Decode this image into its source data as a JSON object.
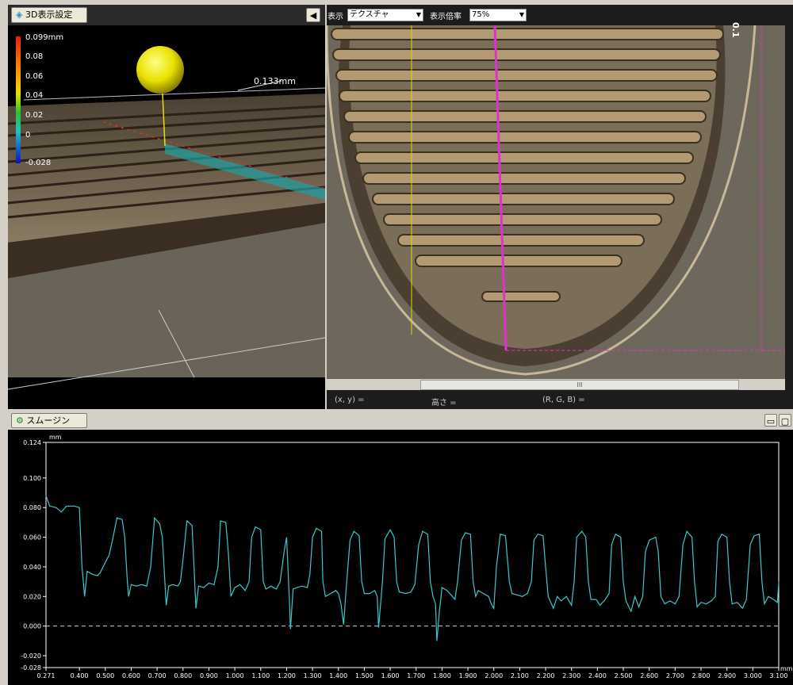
{
  "view3d": {
    "settings_button": "3D表示設定",
    "collapse_arrow": "◀",
    "colorbar_labels": [
      "0.099mm",
      "0.08",
      "0.06",
      "0.04",
      "0.02",
      "0",
      "-0.028"
    ],
    "dimension_label": "0.133mm"
  },
  "image_view": {
    "display_label": "表示",
    "display_value": "テクスチャ",
    "zoom_label": "表示倍率",
    "zoom_value": "75%",
    "scroll_mark": "III",
    "edge_label": "0.1",
    "status": {
      "xy": "(x, y) =",
      "height": "高さ =",
      "rgb": "(R, G, B) ="
    }
  },
  "profile": {
    "window_title": "スムージング..."
  },
  "chart_data": {
    "type": "line",
    "y_unit": "mm",
    "x_unit": "mm",
    "ylim": [
      -0.028,
      0.124
    ],
    "xlim": [
      0.271,
      3.1
    ],
    "y_ticks": [
      "0.124",
      "0.100",
      "0.080",
      "0.060",
      "0.040",
      "0.020",
      "0.000",
      "-0.020",
      "-0.028"
    ],
    "y_tick_values": [
      0.124,
      0.1,
      0.08,
      0.06,
      0.04,
      0.02,
      0.0,
      -0.02,
      -0.028
    ],
    "x_ticks": [
      "0.271",
      "0.400",
      "0.500",
      "0.600",
      "0.700",
      "0.800",
      "0.900",
      "1.000",
      "1.100",
      "1.200",
      "1.300",
      "1.400",
      "1.500",
      "1.600",
      "1.700",
      "1.800",
      "1.900",
      "2.000",
      "2.100",
      "2.200",
      "2.300",
      "2.400",
      "2.500",
      "2.600",
      "2.700",
      "2.800",
      "2.900",
      "3.000",
      "3.100"
    ],
    "x_tick_values": [
      0.271,
      0.4,
      0.5,
      0.6,
      0.7,
      0.8,
      0.9,
      1.0,
      1.1,
      1.2,
      1.3,
      1.4,
      1.5,
      1.6,
      1.7,
      1.8,
      1.9,
      2.0,
      2.1,
      2.2,
      2.3,
      2.4,
      2.5,
      2.6,
      2.7,
      2.8,
      2.9,
      3.0,
      3.1
    ],
    "zero_line": 0.0,
    "series": [
      {
        "color": "#3cc8c8",
        "points": [
          [
            0.271,
            0.088
          ],
          [
            0.285,
            0.081
          ],
          [
            0.31,
            0.08
          ],
          [
            0.33,
            0.077
          ],
          [
            0.35,
            0.081
          ],
          [
            0.38,
            0.081
          ],
          [
            0.4,
            0.08
          ],
          [
            0.41,
            0.04
          ],
          [
            0.42,
            0.02
          ],
          [
            0.43,
            0.037
          ],
          [
            0.45,
            0.035
          ],
          [
            0.47,
            0.034
          ],
          [
            0.48,
            0.036
          ],
          [
            0.5,
            0.043
          ],
          [
            0.515,
            0.048
          ],
          [
            0.53,
            0.06
          ],
          [
            0.545,
            0.073
          ],
          [
            0.565,
            0.072
          ],
          [
            0.575,
            0.06
          ],
          [
            0.585,
            0.03
          ],
          [
            0.59,
            0.02
          ],
          [
            0.6,
            0.028
          ],
          [
            0.62,
            0.027
          ],
          [
            0.64,
            0.028
          ],
          [
            0.66,
            0.027
          ],
          [
            0.675,
            0.04
          ],
          [
            0.69,
            0.073
          ],
          [
            0.71,
            0.069
          ],
          [
            0.72,
            0.06
          ],
          [
            0.73,
            0.03
          ],
          [
            0.735,
            0.014
          ],
          [
            0.745,
            0.027
          ],
          [
            0.76,
            0.028
          ],
          [
            0.78,
            0.027
          ],
          [
            0.79,
            0.03
          ],
          [
            0.8,
            0.045
          ],
          [
            0.815,
            0.071
          ],
          [
            0.835,
            0.068
          ],
          [
            0.845,
            0.03
          ],
          [
            0.85,
            0.012
          ],
          [
            0.86,
            0.027
          ],
          [
            0.88,
            0.026
          ],
          [
            0.9,
            0.029
          ],
          [
            0.92,
            0.028
          ],
          [
            0.935,
            0.04
          ],
          [
            0.945,
            0.071
          ],
          [
            0.965,
            0.07
          ],
          [
            0.975,
            0.05
          ],
          [
            0.985,
            0.02
          ],
          [
            1.0,
            0.026
          ],
          [
            1.02,
            0.028
          ],
          [
            1.04,
            0.024
          ],
          [
            1.055,
            0.03
          ],
          [
            1.065,
            0.06
          ],
          [
            1.08,
            0.067
          ],
          [
            1.1,
            0.065
          ],
          [
            1.11,
            0.03
          ],
          [
            1.12,
            0.025
          ],
          [
            1.14,
            0.027
          ],
          [
            1.16,
            0.025
          ],
          [
            1.175,
            0.03
          ],
          [
            1.19,
            0.05
          ],
          [
            1.2,
            0.06
          ],
          [
            1.21,
            0.02
          ],
          [
            1.215,
            -0.002
          ],
          [
            1.225,
            0.025
          ],
          [
            1.24,
            0.026
          ],
          [
            1.26,
            0.027
          ],
          [
            1.28,
            0.026
          ],
          [
            1.29,
            0.035
          ],
          [
            1.3,
            0.06
          ],
          [
            1.315,
            0.066
          ],
          [
            1.335,
            0.064
          ],
          [
            1.34,
            0.03
          ],
          [
            1.35,
            0.02
          ],
          [
            1.37,
            0.022
          ],
          [
            1.39,
            0.024
          ],
          [
            1.4,
            0.022
          ],
          [
            1.41,
            0.015
          ],
          [
            1.42,
            0.001
          ],
          [
            1.43,
            0.025
          ],
          [
            1.445,
            0.058
          ],
          [
            1.46,
            0.064
          ],
          [
            1.48,
            0.061
          ],
          [
            1.49,
            0.03
          ],
          [
            1.5,
            0.022
          ],
          [
            1.52,
            0.022
          ],
          [
            1.54,
            0.024
          ],
          [
            1.55,
            0.02
          ],
          [
            1.555,
            -0.001
          ],
          [
            1.57,
            0.03
          ],
          [
            1.58,
            0.059
          ],
          [
            1.6,
            0.065
          ],
          [
            1.615,
            0.06
          ],
          [
            1.625,
            0.03
          ],
          [
            1.635,
            0.023
          ],
          [
            1.66,
            0.022
          ],
          [
            1.68,
            0.023
          ],
          [
            1.695,
            0.028
          ],
          [
            1.71,
            0.055
          ],
          [
            1.725,
            0.064
          ],
          [
            1.745,
            0.062
          ],
          [
            1.755,
            0.03
          ],
          [
            1.765,
            0.02
          ],
          [
            1.775,
            0.015
          ],
          [
            1.78,
            -0.01
          ],
          [
            1.79,
            0.01
          ],
          [
            1.8,
            0.026
          ],
          [
            1.82,
            0.024
          ],
          [
            1.84,
            0.02
          ],
          [
            1.85,
            0.018
          ],
          [
            1.86,
            0.03
          ],
          [
            1.875,
            0.058
          ],
          [
            1.89,
            0.063
          ],
          [
            1.91,
            0.062
          ],
          [
            1.92,
            0.03
          ],
          [
            1.93,
            0.02
          ],
          [
            1.94,
            0.024
          ],
          [
            1.96,
            0.022
          ],
          [
            1.98,
            0.02
          ],
          [
            1.99,
            0.015
          ],
          [
            2.0,
            0.012
          ],
          [
            2.01,
            0.04
          ],
          [
            2.025,
            0.062
          ],
          [
            2.045,
            0.061
          ],
          [
            2.06,
            0.03
          ],
          [
            2.07,
            0.022
          ],
          [
            2.09,
            0.021
          ],
          [
            2.11,
            0.02
          ],
          [
            2.13,
            0.022
          ],
          [
            2.145,
            0.03
          ],
          [
            2.155,
            0.058
          ],
          [
            2.17,
            0.062
          ],
          [
            2.19,
            0.061
          ],
          [
            2.2,
            0.04
          ],
          [
            2.21,
            0.02
          ],
          [
            2.23,
            0.012
          ],
          [
            2.245,
            0.02
          ],
          [
            2.26,
            0.017
          ],
          [
            2.28,
            0.02
          ],
          [
            2.3,
            0.014
          ],
          [
            2.31,
            0.03
          ],
          [
            2.32,
            0.06
          ],
          [
            2.34,
            0.064
          ],
          [
            2.355,
            0.06
          ],
          [
            2.365,
            0.03
          ],
          [
            2.375,
            0.018
          ],
          [
            2.395,
            0.018
          ],
          [
            2.41,
            0.014
          ],
          [
            2.43,
            0.018
          ],
          [
            2.445,
            0.022
          ],
          [
            2.455,
            0.055
          ],
          [
            2.47,
            0.062
          ],
          [
            2.49,
            0.06
          ],
          [
            2.5,
            0.03
          ],
          [
            2.51,
            0.017
          ],
          [
            2.53,
            0.01
          ],
          [
            2.545,
            0.02
          ],
          [
            2.56,
            0.013
          ],
          [
            2.575,
            0.02
          ],
          [
            2.585,
            0.05
          ],
          [
            2.6,
            0.058
          ],
          [
            2.625,
            0.06
          ],
          [
            2.635,
            0.05
          ],
          [
            2.645,
            0.02
          ],
          [
            2.66,
            0.015
          ],
          [
            2.68,
            0.017
          ],
          [
            2.7,
            0.015
          ],
          [
            2.715,
            0.02
          ],
          [
            2.73,
            0.055
          ],
          [
            2.745,
            0.064
          ],
          [
            2.765,
            0.06
          ],
          [
            2.775,
            0.03
          ],
          [
            2.785,
            0.013
          ],
          [
            2.8,
            0.016
          ],
          [
            2.82,
            0.015
          ],
          [
            2.84,
            0.017
          ],
          [
            2.855,
            0.02
          ],
          [
            2.865,
            0.057
          ],
          [
            2.88,
            0.062
          ],
          [
            2.9,
            0.06
          ],
          [
            2.91,
            0.03
          ],
          [
            2.92,
            0.015
          ],
          [
            2.94,
            0.016
          ],
          [
            2.96,
            0.012
          ],
          [
            2.975,
            0.018
          ],
          [
            2.99,
            0.055
          ],
          [
            3.005,
            0.061
          ],
          [
            3.025,
            0.062
          ],
          [
            3.035,
            0.03
          ],
          [
            3.045,
            0.015
          ],
          [
            3.06,
            0.02
          ],
          [
            3.08,
            0.018
          ],
          [
            3.095,
            0.016
          ],
          [
            3.1,
            0.03
          ]
        ]
      }
    ]
  }
}
